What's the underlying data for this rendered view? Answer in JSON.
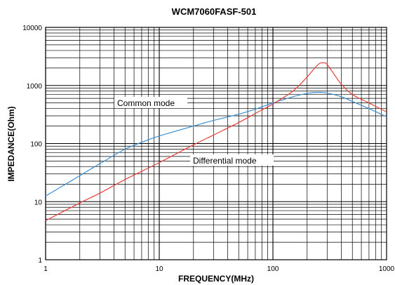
{
  "chart_data": {
    "type": "line",
    "title": "WCM7060FASF-501",
    "xlabel": "FREQUENCY(MHz)",
    "ylabel": "IMPEDANCE(Ohm)",
    "x_scale": "log",
    "y_scale": "log",
    "xlim": [
      1,
      1000
    ],
    "ylim": [
      1,
      10000
    ],
    "x_ticks": [
      "1",
      "10",
      "100",
      "1000"
    ],
    "y_ticks": [
      "1",
      "10",
      "100",
      "1000",
      "10000"
    ],
    "grid": true,
    "series": [
      {
        "name": "Common mode",
        "color": "#3a8fd6",
        "points": [
          [
            1,
            12.5
          ],
          [
            1.5,
            20
          ],
          [
            2,
            28
          ],
          [
            3,
            45
          ],
          [
            5,
            80
          ],
          [
            7,
            105
          ],
          [
            10,
            135
          ],
          [
            20,
            200
          ],
          [
            30,
            250
          ],
          [
            50,
            320
          ],
          [
            70,
            390
          ],
          [
            100,
            500
          ],
          [
            150,
            640
          ],
          [
            200,
            730
          ],
          [
            250,
            760
          ],
          [
            300,
            740
          ],
          [
            400,
            640
          ],
          [
            500,
            530
          ],
          [
            700,
            400
          ],
          [
            1000,
            290
          ]
        ]
      },
      {
        "name": "Differential mode",
        "color": "#e8403a",
        "points": [
          [
            1,
            4.7
          ],
          [
            2,
            9.5
          ],
          [
            3,
            14
          ],
          [
            5,
            24
          ],
          [
            10,
            47
          ],
          [
            20,
            95
          ],
          [
            30,
            140
          ],
          [
            50,
            230
          ],
          [
            70,
            330
          ],
          [
            100,
            480
          ],
          [
            150,
            800
          ],
          [
            200,
            1400
          ],
          [
            250,
            2300
          ],
          [
            280,
            2450
          ],
          [
            300,
            2300
          ],
          [
            350,
            1500
          ],
          [
            400,
            1050
          ],
          [
            500,
            700
          ],
          [
            700,
            500
          ],
          [
            1000,
            350
          ]
        ]
      }
    ]
  }
}
